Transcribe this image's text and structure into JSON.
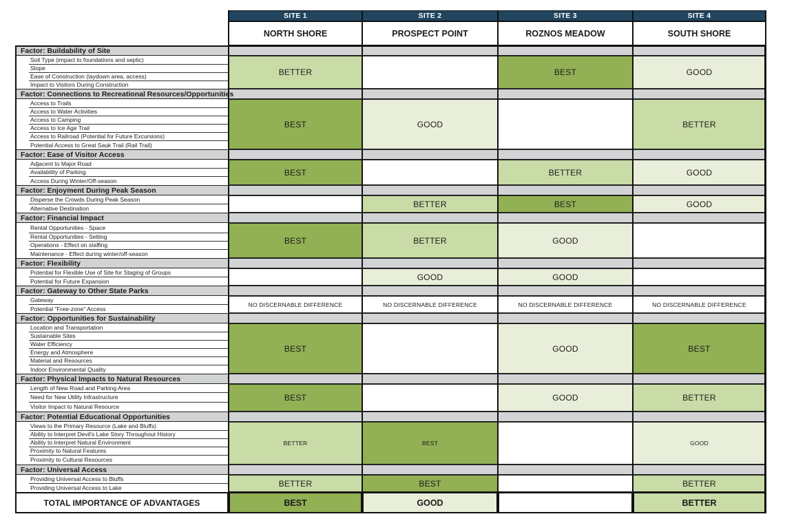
{
  "sites": [
    {
      "number": "SITE 1",
      "name": "NORTH SHORE"
    },
    {
      "number": "SITE 2",
      "name": "PROSPECT POINT"
    },
    {
      "number": "SITE 3",
      "name": "ROZNOS MEADOW"
    },
    {
      "number": "SITE 4",
      "name": "SOUTH SHORE"
    }
  ],
  "factors": [
    {
      "title": "Factor: Buildability of Site",
      "criteria": [
        "Soil Type (impact to foundations and septic)",
        "Slope",
        "Ease of Construction (laydown area, access)",
        "Impact to Visitors During Construction"
      ],
      "ratings": [
        "BETTER",
        "",
        "BEST",
        "GOOD"
      ]
    },
    {
      "title": "Factor: Connections to Recreational Resources/Opportunities",
      "criteria": [
        "Access to Trails",
        "Access to Water Activities",
        "Access to Camping",
        "Access to Ice Age Trail",
        "Access to Railroad (Potential for Future Excursions)",
        "Potential Access to Great Sauk Trail (Rail Trail)"
      ],
      "ratings": [
        "BEST",
        "GOOD",
        "",
        "BETTER"
      ]
    },
    {
      "title": "Factor: Ease of Visitor Access",
      "criteria": [
        "Adjacent to Major Road",
        "Availability of Parking",
        "Access During Winter/Off-season"
      ],
      "ratings": [
        "BEST",
        "",
        "BETTER",
        "GOOD"
      ]
    },
    {
      "title": "Factor: Enjoyment During Peak Season",
      "criteria": [
        "Disperse the Crowds During Peak Season",
        "Alternative Destination"
      ],
      "ratings": [
        "",
        "BETTER",
        "BEST",
        "GOOD"
      ]
    },
    {
      "title": "Factor:  Financial Impact",
      "criteria": [
        "Rental Opportunities - Space",
        "Rental Opportunities - Setting",
        "Operations - Effect on staffing",
        "Maintenance - Effect during winter/off-season"
      ],
      "ratings": [
        "BEST",
        "BETTER",
        "GOOD",
        ""
      ]
    },
    {
      "title": "Factor: Flexibility",
      "criteria": [
        "Potential for Flexible Use of Site for Staging of Groups",
        "Potential for Future Expansion"
      ],
      "ratings": [
        "",
        "GOOD",
        "GOOD",
        ""
      ]
    },
    {
      "title": "Factor: Gateway to Other State Parks",
      "criteria": [
        "Gateway",
        "Potential \"Free-zone\" Access"
      ],
      "ratings": [
        "NO DISCERNABLE DIFFERENCE",
        "NO DISCERNABLE DIFFERENCE",
        "NO DISCERNABLE DIFFERENCE",
        "NO DISCERNABLE DIFFERENCE"
      ]
    },
    {
      "title": "Factor: Opportunities for Sustainability",
      "criteria": [
        "Location and Transportation",
        "Sustainable Sites",
        "Water Efficiency",
        "Energy and Atmosphere",
        "Material and Resources",
        "Indoor Environmental Quality"
      ],
      "ratings": [
        "BEST",
        "",
        "GOOD",
        "BEST"
      ]
    },
    {
      "title": "Factor: Physical Impacts to Natural Resources",
      "criteria": [
        "Length of New Road and Parking Area",
        "Need for New Utility Infrastructure",
        "Visitor Impact to Natural Resource"
      ],
      "ratings": [
        "BEST",
        "",
        "GOOD",
        "BETTER"
      ]
    },
    {
      "title": "Factor: Potential Educational Opportunities",
      "criteria": [
        "Views to the Primary Resource (Lake and Bluffs)",
        "Ability to Interpret Devil's Lake Story Throughout History",
        "Ability to Interpret Natural Environment",
        "Proximity to Natural Features",
        "Proximity to Cultural Resources"
      ],
      "ratings": [
        "BETTER",
        "BEST",
        "",
        "GOOD"
      ]
    },
    {
      "title": "Factor: Universal Access",
      "criteria": [
        "Providing Universal Access to Bluffs",
        "Providing Universal Access to Lake"
      ],
      "ratings": [
        "BETTER",
        "BEST",
        "",
        "BETTER"
      ]
    }
  ],
  "total": {
    "label": "TOTAL IMPORTANCE OF ADVANTAGES",
    "ratings": [
      "BEST",
      "GOOD",
      "",
      "BETTER"
    ]
  },
  "rating_colors": {
    "BEST": "#92b054",
    "BETTER": "#c9dba6",
    "GOOD": "#e8eed9"
  }
}
